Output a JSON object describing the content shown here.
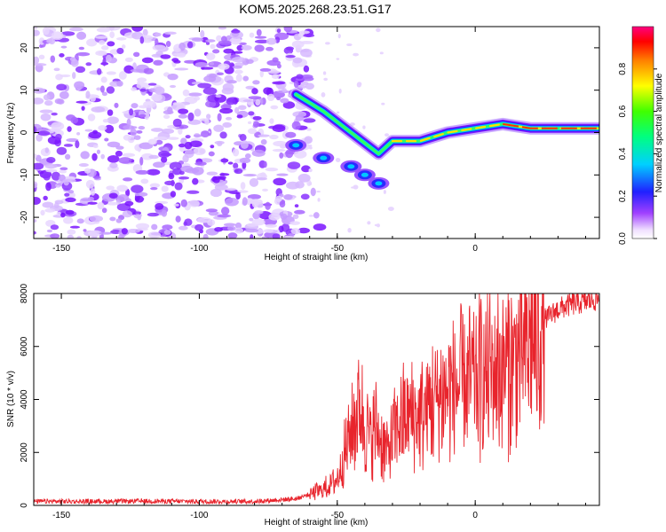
{
  "title": "KOM5.2025.268.23.51.G17",
  "chart_data": [
    {
      "type": "heatmap",
      "xlabel": "Height of straight line (km)",
      "ylabel": "Frequency (Hz)",
      "xlim": [
        -160,
        45
      ],
      "ylim": [
        -25,
        25
      ],
      "xticks": [
        -150,
        -100,
        -50,
        0
      ],
      "yticks": [
        -20,
        -10,
        0,
        10,
        20
      ],
      "colorbar": {
        "label": "Normalized spectral amplitude",
        "range": [
          0,
          1
        ],
        "ticks": [
          0.0,
          0.2,
          0.4,
          0.6,
          0.8
        ]
      },
      "noise_region_x": [
        -160,
        -60
      ],
      "signal_ridge": {
        "x": [
          -65,
          -55,
          -45,
          -35,
          -30,
          -20,
          -10,
          0,
          10,
          20,
          30,
          45
        ],
        "freq_hz": [
          9,
          5,
          0,
          -5,
          -2,
          -2,
          0,
          1,
          2,
          1,
          1,
          1
        ]
      },
      "secondary_branch": {
        "x": [
          -65,
          -55,
          -45,
          -40,
          -35
        ],
        "freq_hz": [
          -3,
          -6,
          -8,
          -10,
          -12
        ]
      }
    },
    {
      "type": "line",
      "xlabel": "Height of straight line (km)",
      "ylabel": "SNR (10 * v/v)",
      "xlim": [
        -160,
        45
      ],
      "ylim": [
        0,
        8000
      ],
      "xticks": [
        -150,
        -100,
        -50,
        0
      ],
      "yticks": [
        0,
        2000,
        4000,
        6000,
        8000
      ],
      "series": [
        {
          "name": "SNR",
          "color": "#e8242c",
          "x": [
            -160,
            -140,
            -120,
            -100,
            -80,
            -65,
            -55,
            -50,
            -45,
            -42,
            -40,
            -38,
            -36,
            -34,
            -32,
            -30,
            -28,
            -25,
            -20,
            -15,
            -10,
            -5,
            0,
            5,
            10,
            15,
            20,
            25,
            30,
            35,
            40,
            45
          ],
          "values": [
            150,
            150,
            160,
            150,
            150,
            250,
            600,
            1000,
            2800,
            3800,
            3200,
            2500,
            3000,
            2400,
            2000,
            2500,
            3000,
            3400,
            3300,
            4000,
            4300,
            4500,
            4700,
            5000,
            5200,
            5500,
            6200,
            7000,
            7400,
            7600,
            7700,
            7800
          ]
        }
      ]
    }
  ]
}
